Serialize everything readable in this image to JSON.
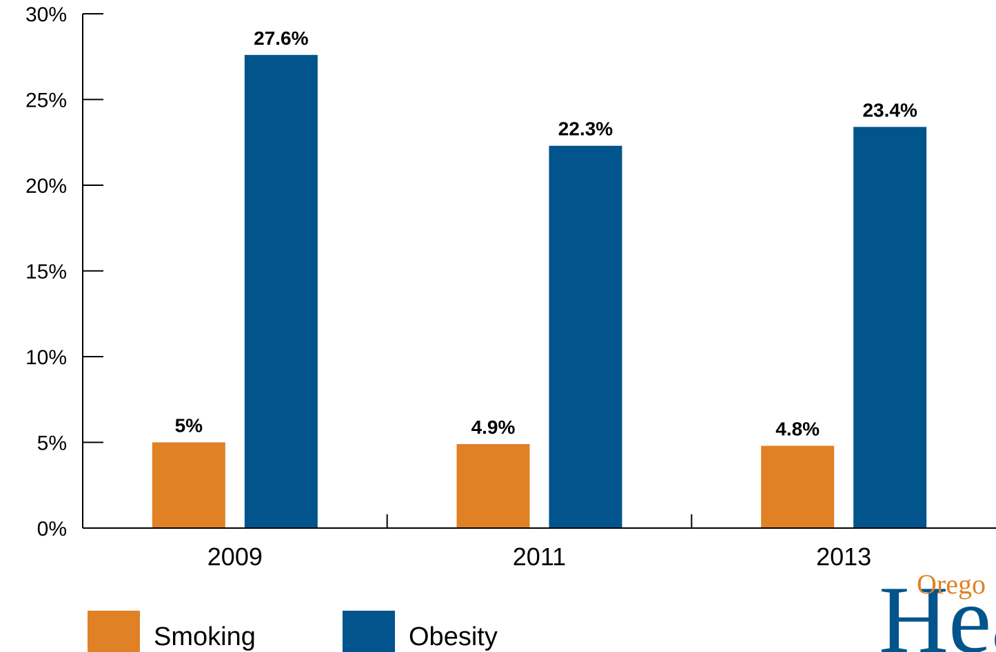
{
  "chart_data": {
    "type": "bar",
    "categories": [
      "2009",
      "2011",
      "2013"
    ],
    "series": [
      {
        "name": "Smoking",
        "values": [
          5,
          4.9,
          4.8
        ],
        "labels": [
          "5%",
          "4.9%",
          "4.8%"
        ],
        "color": "#E08126"
      },
      {
        "name": "Obesity",
        "values": [
          27.6,
          22.3,
          23.4
        ],
        "labels": [
          "27.6%",
          "22.3%",
          "23.4%"
        ],
        "color": "#02548C"
      }
    ],
    "ylim": [
      0,
      30
    ],
    "yticks": [
      0,
      5,
      10,
      15,
      20,
      25,
      30
    ],
    "ytick_labels": [
      "0%",
      "5%",
      "10%",
      "15%",
      "20%",
      "25%",
      "30%"
    ],
    "legend_position": "bottom-left",
    "grid": false
  },
  "logo": {
    "text_large": "Hea",
    "text_small": "Orego",
    "color_primary": "#02548C",
    "color_accent": "#E08126"
  }
}
